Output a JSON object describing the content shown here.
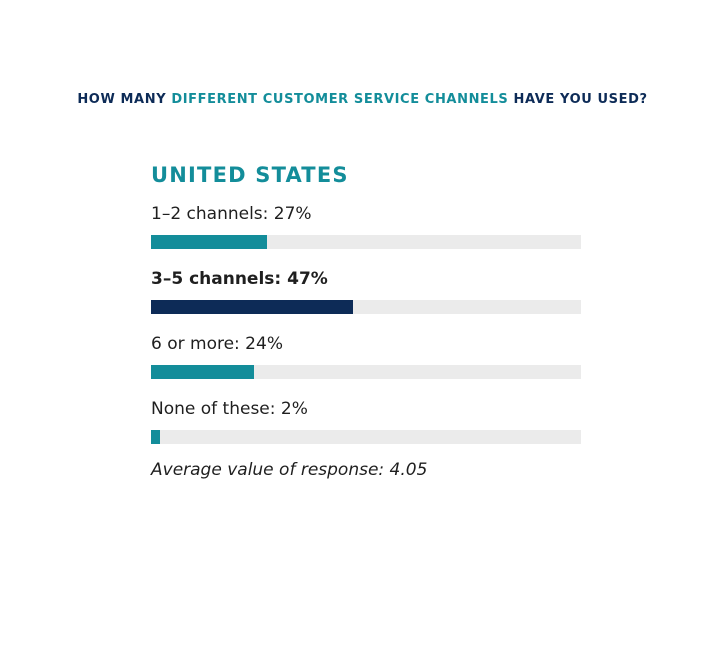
{
  "question": {
    "before": "HOW MANY ",
    "highlight": "DIFFERENT CUSTOMER SERVICE CHANNELS",
    "after": " HAVE YOU USED?"
  },
  "colors": {
    "navy": "#0d2b57",
    "teal": "#138d9a",
    "track": "#ebebeb"
  },
  "chart_data": {
    "type": "bar",
    "title": "UNITED STATES",
    "categories": [
      "1–2 channels",
      "3–5 channels",
      "6 or more",
      "None of these"
    ],
    "values": [
      27,
      47,
      24,
      2
    ],
    "labels": [
      "1–2 channels: 27%",
      "3–5 channels: 47%",
      "6 or more: 24%",
      "None of these: 2%"
    ],
    "highlighted": [
      false,
      true,
      false,
      false
    ],
    "unit": "%",
    "xlim": [
      0,
      100
    ],
    "orientation": "horizontal",
    "note": "Average value of response: 4.05"
  }
}
